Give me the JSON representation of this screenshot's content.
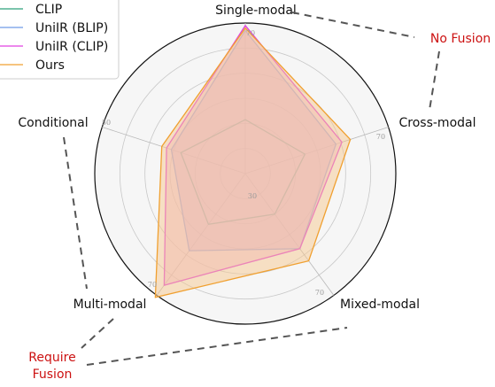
{
  "chart_data": {
    "type": "radar",
    "axes": [
      "Single-modal",
      "Cross-modal",
      "Mixed-modal",
      "Multi-modal",
      "Conditional"
    ],
    "rlim": [
      10,
      70
    ],
    "rings": [
      30,
      50,
      70
    ],
    "tick_labels": {
      "inner": "30",
      "conditional": "50",
      "cross": "70",
      "mixed": "70",
      "multi": "70",
      "single": "70"
    },
    "series": [
      {
        "name": "CLIP",
        "color": "#2ca07a",
        "fill": false,
        "values": [
          31.5,
          35.0,
          30.0,
          35.0,
          37.0
        ]
      },
      {
        "name": "UniIR (BLIP)",
        "color": "#6f9be6",
        "fill": true,
        "fill_color": "#c9b0e8",
        "values": [
          67.0,
          48.0,
          47.0,
          48.0,
          41.0
        ]
      },
      {
        "name": "UniIR (CLIP)",
        "color": "#e040e0",
        "fill": true,
        "fill_color": "#f0b0d0",
        "values": [
          69.0,
          50.5,
          47.0,
          65.0,
          43.0
        ]
      },
      {
        "name": "Ours",
        "color": "#f0a030",
        "fill": true,
        "fill_color": "#f5c890",
        "values": [
          68.0,
          54.0,
          53.0,
          71.0,
          45.0
        ]
      }
    ],
    "annotations": {
      "no_fusion": "No Fusion",
      "require_fusion_line1": "Require",
      "require_fusion_line2": "Fusion"
    },
    "legend_position": "top-left"
  }
}
